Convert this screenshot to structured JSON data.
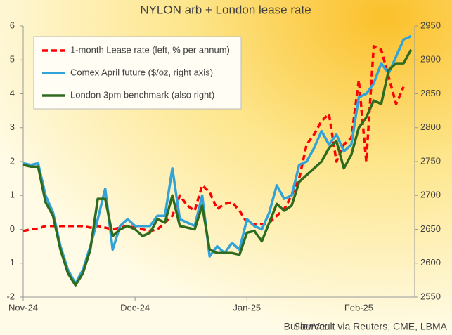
{
  "chart_data": {
    "type": "line",
    "title": "NYLON  arb + London lease rate",
    "source_label": "Source:",
    "source": "BullionVault via Reuters, CME, LBMA",
    "categories": [
      "Nov-24",
      null,
      null,
      null,
      null,
      null,
      null,
      null,
      null,
      null,
      null,
      null,
      null,
      null,
      null,
      "Dec-24",
      null,
      null,
      null,
      null,
      null,
      null,
      null,
      null,
      null,
      null,
      null,
      null,
      null,
      null,
      "Jan-25",
      null,
      null,
      null,
      null,
      null,
      null,
      null,
      null,
      null,
      null,
      null,
      null,
      null,
      null,
      "Feb-25",
      null,
      null,
      null,
      null,
      null,
      null,
      null
    ],
    "ylim": [
      -2,
      6
    ],
    "yticks": [
      -2,
      -1,
      0,
      1,
      2,
      3,
      4,
      5,
      6
    ],
    "y2lim": [
      2550,
      2950
    ],
    "y2ticks": [
      2550,
      2600,
      2650,
      2700,
      2750,
      2800,
      2850,
      2900,
      2950
    ],
    "grid": false,
    "legend": "upper left",
    "series": [
      {
        "name": "1-month Lease rate (left, % per annum)",
        "color": "#ff0000",
        "dashed": true,
        "values": [
          -0.05,
          0,
          0.02,
          0.1,
          0.1,
          0.1,
          0.1,
          0.1,
          0.1,
          0.05,
          0.1,
          0.05,
          0,
          0.05,
          0.1,
          0.05,
          0,
          -0.05,
          0,
          0.2,
          0.4,
          1.0,
          0.7,
          0.55,
          1.3,
          1.1,
          0.6,
          0.75,
          0.8,
          0.55,
          0.2,
          0.15,
          0.15,
          0.2,
          0.4,
          0.6,
          1.0,
          1.5,
          2.5,
          2.8,
          3.2,
          3.4,
          2.0,
          2.5,
          2.7,
          4.4,
          2.0,
          5.4,
          5.3,
          4.5,
          3.7,
          4.2,
          null
        ]
      },
      {
        "name": "Comex April future  ($/oz, right axis)",
        "color": "#31a3d8",
        "axis": "y2",
        "values": [
          2747.5,
          2745,
          2747.5,
          2700,
          2675,
          2625,
          2590,
          2570,
          2590,
          2625,
          2665,
          2710,
          2620,
          2655,
          2665,
          2655,
          2655,
          2655,
          2670,
          2670,
          2740,
          2665,
          2660,
          2655,
          2700,
          2610,
          2625,
          2615,
          2630,
          2620,
          2665,
          2655,
          2650,
          2675,
          2715,
          2695,
          2700,
          2745,
          2750,
          2770,
          2795,
          2775,
          2790,
          2765,
          2775,
          2845,
          2850,
          2865,
          2895,
          2880,
          2905,
          2930,
          2935
        ]
      },
      {
        "name": "London 3pm benchmark (also right)",
        "color": "#2f6b1f",
        "axis": "y2",
        "values": [
          2745,
          2742.5,
          2742.5,
          2690,
          2670,
          2620,
          2585,
          2567.5,
          2585,
          2620,
          2695,
          2695,
          2640,
          2650,
          2655,
          2650,
          2640,
          2645,
          2665,
          2660,
          2700,
          2655,
          2652.5,
          2650,
          2685,
          2620,
          2615,
          2615,
          2615,
          2612.5,
          2645,
          2647.5,
          2632.5,
          2660,
          2687.5,
          2677.5,
          2685,
          2720,
          2730,
          2740,
          2750,
          2770,
          2780,
          2740,
          2760,
          2800,
          2815,
          2840,
          2835,
          2885,
          2895,
          2895,
          2915
        ]
      }
    ]
  }
}
